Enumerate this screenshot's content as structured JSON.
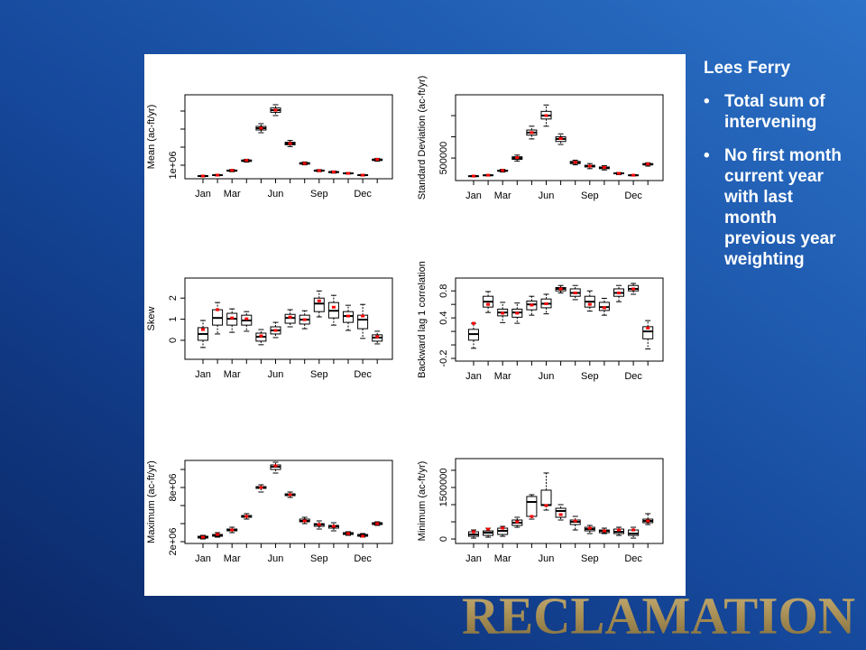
{
  "slide": {
    "title": "Lees Ferry",
    "bullets": [
      "Total sum of intervening",
      "No first month current year with last month previous year weighting"
    ],
    "logo": "RECLAMATION"
  },
  "chart_data": [
    {
      "type": "box",
      "ylabel": "Mean (ac-ft/yr)",
      "categories": [
        "Jan",
        null,
        "Mar",
        null,
        null,
        "Jun",
        null,
        null,
        "Sep",
        null,
        null,
        "Dec",
        null
      ],
      "min": [
        360000,
        410000,
        640000,
        1170000,
        2800000,
        3750000,
        2030000,
        1020000,
        640000,
        560000,
        510000,
        410000,
        1220000
      ],
      "q1": [
        380000,
        430000,
        670000,
        1210000,
        2950000,
        3930000,
        2130000,
        1060000,
        670000,
        590000,
        530000,
        430000,
        1260000
      ],
      "median": [
        400000,
        450000,
        700000,
        1250000,
        3050000,
        4050000,
        2200000,
        1100000,
        700000,
        620000,
        550000,
        450000,
        1300000
      ],
      "q3": [
        420000,
        470000,
        730000,
        1290000,
        3150000,
        4170000,
        2270000,
        1140000,
        730000,
        650000,
        570000,
        470000,
        1340000
      ],
      "max": [
        440000,
        490000,
        760000,
        1330000,
        3300000,
        4350000,
        2370000,
        1180000,
        760000,
        680000,
        590000,
        490000,
        1380000
      ],
      "observed": [
        400000,
        450000,
        720000,
        1270000,
        3050000,
        4050000,
        2200000,
        1100000,
        700000,
        630000,
        550000,
        450000,
        1320000
      ],
      "color": "#000000",
      "observed_color": "#ff0000",
      "ylim": [
        250000,
        4900000
      ],
      "yticks": [
        {
          "value": 1000000,
          "label": "1e+06"
        },
        {
          "value": 2000000,
          "label": null
        },
        {
          "value": 3000000,
          "label": null
        },
        {
          "value": 4000000,
          "label": null
        }
      ]
    },
    {
      "type": "box",
      "ylabel": "Standard Deviation (ac-ft/yr)",
      "categories": [
        "Jan",
        null,
        "Mar",
        null,
        null,
        "Jun",
        null,
        null,
        "Sep",
        null,
        null,
        "Dec",
        null
      ],
      "min": [
        60000,
        80000,
        170000,
        430000,
        950000,
        1250000,
        820000,
        340000,
        250000,
        220000,
        110000,
        80000,
        310000
      ],
      "q1": [
        70000,
        90000,
        190000,
        470000,
        1040000,
        1420000,
        890000,
        370000,
        290000,
        250000,
        130000,
        90000,
        340000
      ],
      "median": [
        75000,
        96000,
        200000,
        500000,
        1100000,
        1500000,
        950000,
        390000,
        310000,
        270000,
        140000,
        96000,
        350000
      ],
      "q3": [
        80000,
        100000,
        215000,
        530000,
        1160000,
        1600000,
        1000000,
        420000,
        330000,
        290000,
        150000,
        100000,
        370000
      ],
      "max": [
        90000,
        110000,
        235000,
        570000,
        1250000,
        1750000,
        1070000,
        450000,
        370000,
        320000,
        160000,
        110000,
        390000
      ],
      "observed": [
        75000,
        96000,
        210000,
        510000,
        1100000,
        1500000,
        960000,
        400000,
        310000,
        280000,
        140000,
        96000,
        360000
      ],
      "color": "#000000",
      "observed_color": "#ff0000",
      "ylim": [
        -30000,
        1990000
      ],
      "yticks": [
        500000,
        {
          "value": 1000000,
          "label": null
        },
        {
          "value": 1500000,
          "label": null
        }
      ]
    },
    {
      "type": "box",
      "ylabel": "Skew",
      "categories": [
        "Jan",
        null,
        "Mar",
        null,
        null,
        "Jun",
        null,
        null,
        "Sep",
        null,
        null,
        "Dec",
        null
      ],
      "min": [
        -0.34,
        0.3,
        0.38,
        0.43,
        -0.21,
        0.13,
        0.64,
        0.55,
        1.11,
        0.72,
        0.47,
        0.09,
        -0.17
      ],
      "q1": [
        0,
        0.72,
        0.72,
        0.72,
        -0.04,
        0.3,
        0.81,
        0.77,
        1.36,
        1.06,
        0.85,
        0.55,
        -0.04
      ],
      "median": [
        0.3,
        1.06,
        1.02,
        0.94,
        0.17,
        0.47,
        1.06,
        0.98,
        1.74,
        1.4,
        1.15,
        0.98,
        0.13
      ],
      "q3": [
        0.6,
        1.45,
        1.28,
        1.19,
        0.34,
        0.64,
        1.23,
        1.19,
        2.0,
        1.79,
        1.36,
        1.19,
        0.26
      ],
      "max": [
        0.94,
        1.79,
        1.49,
        1.36,
        0.51,
        0.85,
        1.45,
        1.4,
        2.34,
        2.13,
        1.66,
        1.7,
        0.43
      ],
      "observed": [
        0.51,
        1.45,
        1.06,
        1.02,
        0.21,
        0.47,
        1.1,
        0.98,
        1.87,
        1.57,
        1.15,
        1.15,
        0.17
      ],
      "color": "#000000",
      "observed_color": "#ff0000",
      "ylim": [
        -0.9,
        2.95
      ],
      "yticks": [
        0,
        1,
        2
      ]
    },
    {
      "type": "box",
      "ylabel": "Backward lag 1 correlation",
      "categories": [
        "Jan",
        null,
        "Mar",
        null,
        null,
        "Jun",
        null,
        null,
        "Sep",
        null,
        null,
        "Dec",
        null
      ],
      "min": [
        -0.05,
        0.48,
        0.33,
        0.32,
        0.44,
        0.46,
        0.77,
        0.67,
        0.5,
        0.44,
        0.64,
        0.75,
        -0.06
      ],
      "q1": [
        0.07,
        0.56,
        0.43,
        0.41,
        0.52,
        0.55,
        0.8,
        0.72,
        0.56,
        0.51,
        0.72,
        0.8,
        0.09
      ],
      "median": [
        0.16,
        0.64,
        0.48,
        0.48,
        0.6,
        0.61,
        0.83,
        0.77,
        0.64,
        0.56,
        0.77,
        0.83,
        0.2
      ],
      "q3": [
        0.23,
        0.72,
        0.53,
        0.53,
        0.65,
        0.68,
        0.85,
        0.83,
        0.72,
        0.63,
        0.83,
        0.88,
        0.27
      ],
      "max": [
        0.32,
        0.79,
        0.63,
        0.62,
        0.72,
        0.75,
        0.88,
        0.88,
        0.8,
        0.69,
        0.88,
        0.91,
        0.36
      ],
      "observed": [
        0.32,
        0.6,
        0.47,
        0.47,
        0.59,
        0.61,
        0.83,
        0.77,
        0.6,
        0.55,
        0.77,
        0.83,
        0.25
      ],
      "color": "#000000",
      "observed_color": "#ff0000",
      "ylim": [
        -0.24,
        0.99
      ],
      "yticks": [
        -0.2,
        {
          "value": 0,
          "label": null
        },
        {
          "value": 0.2,
          "label": null
        },
        0.4,
        {
          "value": 0.6,
          "label": null
        },
        0.8
      ]
    },
    {
      "type": "box",
      "ylabel": "Maximum (ac-ft/yr)",
      "categories": [
        "Jan",
        null,
        "Mar",
        null,
        null,
        "Jun",
        null,
        null,
        "Sep",
        null,
        null,
        "Dec",
        null
      ],
      "min": [
        2300000,
        2500000,
        3000000,
        4500000,
        7500000,
        9600000,
        6900000,
        4000000,
        3400000,
        3200000,
        2700000,
        2500000,
        3800000
      ],
      "q1": [
        2400000,
        2600000,
        3200000,
        4700000,
        7900000,
        10000000,
        7100000,
        4200000,
        3700000,
        3500000,
        2800000,
        2600000,
        3900000
      ],
      "median": [
        2500000,
        2700000,
        3300000,
        4800000,
        8000000,
        10300000,
        7200000,
        4300000,
        3900000,
        3700000,
        2900000,
        2700000,
        4000000
      ],
      "q3": [
        2600000,
        2800000,
        3400000,
        4900000,
        8100000,
        10500000,
        7300000,
        4500000,
        4000000,
        3800000,
        3000000,
        2800000,
        4100000
      ],
      "max": [
        2700000,
        3000000,
        3600000,
        5100000,
        8300000,
        10800000,
        7500000,
        4700000,
        4300000,
        4100000,
        3100000,
        2900000,
        4200000
      ],
      "observed": [
        2500000,
        2800000,
        3300000,
        4800000,
        8000000,
        10400000,
        7200000,
        4300000,
        3900000,
        3700000,
        2900000,
        2600000,
        4000000
      ],
      "color": "#000000",
      "observed_color": "#ff0000",
      "ylim": [
        1800000,
        11000000
      ],
      "yticks": [
        {
          "value": 2000000,
          "label": "2e+06"
        },
        {
          "value": 4000000,
          "label": null
        },
        {
          "value": 6000000,
          "label": null
        },
        {
          "value": 8000000,
          "label": "8e+06"
        },
        {
          "value": 10000000,
          "label": null
        }
      ]
    },
    {
      "type": "box",
      "ylabel": "Minimum (ac-ft/yr)",
      "categories": [
        "Jan",
        null,
        "Mar",
        null,
        null,
        "Jun",
        null,
        null,
        "Sep",
        null,
        null,
        "Dec",
        null
      ],
      "min": [
        26000,
        53000,
        79000,
        342000,
        579000,
        842000,
        553000,
        263000,
        158000,
        158000,
        105000,
        26000,
        421000
      ],
      "q1": [
        79000,
        105000,
        132000,
        395000,
        658000,
        974000,
        632000,
        421000,
        237000,
        184000,
        158000,
        105000,
        474000
      ],
      "median": [
        132000,
        184000,
        237000,
        474000,
        1079000,
        990000,
        816000,
        500000,
        289000,
        237000,
        211000,
        158000,
        526000
      ],
      "q3": [
        210000,
        237000,
        316000,
        553000,
        1237000,
        1421000,
        895000,
        553000,
        342000,
        263000,
        289000,
        263000,
        579000
      ],
      "max": [
        263000,
        316000,
        368000,
        632000,
        1289000,
        1921000,
        1000000,
        658000,
        395000,
        316000,
        342000,
        342000,
        737000
      ],
      "observed": [
        210000,
        290000,
        316000,
        500000,
        658000,
        974000,
        711000,
        526000,
        316000,
        237000,
        263000,
        263000,
        526000
      ],
      "color": "#000000",
      "observed_color": "#ff0000",
      "ylim": [
        -130000,
        2340000
      ],
      "yticks": [
        0,
        {
          "value": 500000,
          "label": null
        },
        {
          "value": 1000000,
          "label": null
        },
        1500000,
        {
          "value": 2000000,
          "label": null
        }
      ]
    }
  ]
}
